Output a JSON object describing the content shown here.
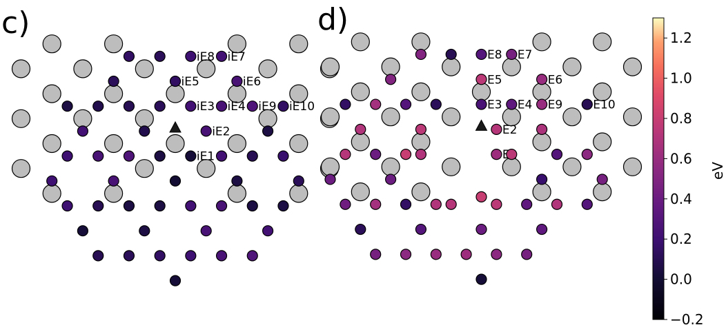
{
  "chart_data": [
    {
      "type": "scatter",
      "panel_label": "c)",
      "atoms": [
        [
          1,
          1
        ],
        [
          3,
          1
        ],
        [
          7,
          1
        ],
        [
          9,
          1
        ],
        [
          0,
          2
        ],
        [
          2,
          2
        ],
        [
          4,
          2
        ],
        [
          6,
          2
        ],
        [
          8,
          2
        ],
        [
          10,
          2
        ],
        [
          1,
          3
        ],
        [
          3,
          3
        ],
        [
          5,
          3
        ],
        [
          7,
          3
        ],
        [
          9,
          3
        ],
        [
          0,
          4
        ],
        [
          2,
          4
        ],
        [
          4,
          4
        ],
        [
          8,
          4
        ],
        [
          10,
          4
        ],
        [
          1,
          5
        ],
        [
          3,
          5
        ],
        [
          5,
          5
        ],
        [
          7,
          5
        ],
        [
          9,
          5
        ],
        [
          0,
          6
        ],
        [
          4,
          6
        ],
        [
          6,
          6
        ],
        [
          10,
          6
        ],
        [
          1,
          7
        ],
        [
          3,
          7
        ],
        [
          7,
          7
        ],
        [
          9,
          7
        ]
      ],
      "marker": [
        5,
        4.35
      ],
      "sites": [
        {
          "x": 3.5,
          "y": 1.5,
          "v": 0.15
        },
        {
          "x": 4.5,
          "y": 1.5,
          "v": 0.12
        },
        {
          "x": 5.5,
          "y": 1.5,
          "v": 0.2,
          "label": "iE8"
        },
        {
          "x": 6.5,
          "y": 1.5,
          "v": 0.22,
          "label": "iE7"
        },
        {
          "x": 3,
          "y": 2.5,
          "v": 0.12
        },
        {
          "x": 5,
          "y": 2.5,
          "v": 0.15,
          "label": "iE5"
        },
        {
          "x": 7,
          "y": 2.5,
          "v": 0.25,
          "label": "iE6"
        },
        {
          "x": 1.5,
          "y": 3.5,
          "v": 0.05
        },
        {
          "x": 2.5,
          "y": 3.5,
          "v": 0.08
        },
        {
          "x": 3.5,
          "y": 3.5,
          "v": 0.1
        },
        {
          "x": 4.5,
          "y": 3.5,
          "v": 0.12
        },
        {
          "x": 5.5,
          "y": 3.5,
          "v": 0.22,
          "label": "iE3"
        },
        {
          "x": 6.5,
          "y": 3.5,
          "v": 0.25,
          "label": "iE4"
        },
        {
          "x": 7.5,
          "y": 3.5,
          "v": 0.28,
          "label": "iE9"
        },
        {
          "x": 8.5,
          "y": 3.5,
          "v": 0.15,
          "label": "iE10"
        },
        {
          "x": 2,
          "y": 4.5,
          "v": 0.22
        },
        {
          "x": 4,
          "y": 4.5,
          "v": 0.08
        },
        {
          "x": 6,
          "y": 4.5,
          "v": 0.25,
          "label": "iE2"
        },
        {
          "x": 8,
          "y": 4.5,
          "v": 0.05
        },
        {
          "x": 1.5,
          "y": 5.5,
          "v": 0.2
        },
        {
          "x": 2.5,
          "y": 5.5,
          "v": 0.25
        },
        {
          "x": 3.5,
          "y": 5.5,
          "v": 0.28
        },
        {
          "x": 4.5,
          "y": 5.5,
          "v": 0.05
        },
        {
          "x": 5.5,
          "y": 5.5,
          "v": 0.02,
          "label": "iE1"
        },
        {
          "x": 6.5,
          "y": 5.5,
          "v": 0.22
        },
        {
          "x": 7.5,
          "y": 5.5,
          "v": 0.1
        },
        {
          "x": 8.5,
          "y": 5.5,
          "v": 0.18
        },
        {
          "x": 1,
          "y": 6.5,
          "v": 0.2
        },
        {
          "x": 3,
          "y": 6.5,
          "v": 0.25
        },
        {
          "x": 5,
          "y": 6.5,
          "v": 0.0
        },
        {
          "x": 7,
          "y": 6.5,
          "v": 0.05
        },
        {
          "x": 9,
          "y": 6.5,
          "v": 0.12
        },
        {
          "x": 1.5,
          "y": 7.5,
          "v": 0.2
        },
        {
          "x": 2.5,
          "y": 7.5,
          "v": 0.1
        },
        {
          "x": 3.5,
          "y": 7.5,
          "v": 0.05
        },
        {
          "x": 4.5,
          "y": 7.5,
          "v": 0.05
        },
        {
          "x": 5.5,
          "y": 7.5,
          "v": 0.22
        },
        {
          "x": 6.5,
          "y": 7.5,
          "v": 0.25
        },
        {
          "x": 7.5,
          "y": 7.5,
          "v": 0.05
        },
        {
          "x": 8.5,
          "y": 7.5,
          "v": 0.05
        },
        {
          "x": 2,
          "y": 8.5,
          "v": 0.02
        },
        {
          "x": 4,
          "y": 8.5,
          "v": 0.05
        },
        {
          "x": 6,
          "y": 8.5,
          "v": 0.25
        },
        {
          "x": 8,
          "y": 8.5,
          "v": 0.22
        },
        {
          "x": 2.5,
          "y": 9.5,
          "v": 0.1
        },
        {
          "x": 3.5,
          "y": 9.5,
          "v": 0.12
        },
        {
          "x": 4.5,
          "y": 9.5,
          "v": 0.15
        },
        {
          "x": 5.5,
          "y": 9.5,
          "v": 0.2
        },
        {
          "x": 6.5,
          "y": 9.5,
          "v": 0.25
        },
        {
          "x": 7.5,
          "y": 9.5,
          "v": 0.28
        },
        {
          "x": 5,
          "y": 10.5,
          "v": 0.02
        }
      ]
    },
    {
      "type": "scatter",
      "panel_label": "d)",
      "atoms": [
        [
          1,
          1
        ],
        [
          3,
          1
        ],
        [
          7,
          1
        ],
        [
          9,
          1
        ],
        [
          0,
          2
        ],
        [
          2,
          2
        ],
        [
          4,
          2
        ],
        [
          6,
          2
        ],
        [
          8,
          2
        ],
        [
          10,
          2
        ],
        [
          1,
          3
        ],
        [
          3,
          3
        ],
        [
          5,
          3
        ],
        [
          7,
          3
        ],
        [
          9,
          3
        ],
        [
          0,
          4
        ],
        [
          2,
          4
        ],
        [
          4,
          4
        ],
        [
          6,
          4
        ],
        [
          8,
          4
        ],
        [
          10,
          4
        ],
        [
          1,
          5
        ],
        [
          3,
          5
        ],
        [
          7,
          5
        ],
        [
          9,
          5
        ],
        [
          0,
          6
        ],
        [
          2,
          6
        ],
        [
          4,
          6
        ],
        [
          6,
          6
        ],
        [
          8,
          6
        ],
        [
          10,
          6
        ],
        [
          1,
          7
        ],
        [
          3,
          7
        ],
        [
          7,
          7
        ],
        [
          9,
          7
        ]
      ],
      "marker": [
        5,
        4.35
      ],
      "sites": [
        {
          "x": 3,
          "y": 1.5,
          "v": 0.5
        },
        {
          "x": 4,
          "y": 1.5,
          "v": 0.1
        },
        {
          "x": 5,
          "y": 1.5,
          "v": 0.3,
          "label": "E8"
        },
        {
          "x": 6,
          "y": 1.5,
          "v": 0.45,
          "label": "E7"
        },
        {
          "x": 2,
          "y": 2.5,
          "v": 0.5
        },
        {
          "x": 5,
          "y": 2.5,
          "v": 0.75,
          "label": "E5"
        },
        {
          "x": 7,
          "y": 2.5,
          "v": 0.6,
          "label": "E6"
        },
        {
          "x": 0.5,
          "y": 3.5,
          "v": 0.15
        },
        {
          "x": 1.5,
          "y": 3.5,
          "v": 0.65
        },
        {
          "x": 2.5,
          "y": 3.5,
          "v": 0.3
        },
        {
          "x": 3.5,
          "y": 3.5,
          "v": 0.12
        },
        {
          "x": 5,
          "y": 3.5,
          "v": 0.25,
          "label": "E3"
        },
        {
          "x": 6,
          "y": 3.5,
          "v": 0.35,
          "label": "E4"
        },
        {
          "x": 7,
          "y": 3.5,
          "v": 0.6,
          "label": "E9"
        },
        {
          "x": 8.5,
          "y": 3.5,
          "v": 0.1,
          "label": "E10"
        },
        {
          "x": 1,
          "y": 4.5,
          "v": 0.7
        },
        {
          "x": 3,
          "y": 4.5,
          "v": 0.75
        },
        {
          "x": 5.5,
          "y": 4.5,
          "v": 0.72,
          "label": "E2"
        },
        {
          "x": 7,
          "y": 4.5,
          "v": 0.68
        },
        {
          "x": 0.5,
          "y": 5.5,
          "v": 0.72
        },
        {
          "x": 1.5,
          "y": 5.5,
          "v": 0.4
        },
        {
          "x": 2.5,
          "y": 5.5,
          "v": 0.8
        },
        {
          "x": 3,
          "y": 5.5,
          "v": 0.7
        },
        {
          "x": 5.5,
          "y": 5.5,
          "v": 0.62,
          "label": "E1"
        },
        {
          "x": 6,
          "y": 5.5,
          "v": 0.75
        },
        {
          "x": 7.5,
          "y": 5.5,
          "v": 0.3
        },
        {
          "x": 8.5,
          "y": 5.5,
          "v": 0.55
        },
        {
          "x": 0,
          "y": 6.5,
          "v": 0.4
        },
        {
          "x": 2,
          "y": 6.5,
          "v": 0.4
        },
        {
          "x": 7,
          "y": 6.5,
          "v": 0.18
        },
        {
          "x": 9,
          "y": 6.5,
          "v": 0.45
        },
        {
          "x": 0.5,
          "y": 7.5,
          "v": 0.42
        },
        {
          "x": 1.5,
          "y": 7.5,
          "v": 0.65
        },
        {
          "x": 2.5,
          "y": 7.5,
          "v": 0.15
        },
        {
          "x": 3.5,
          "y": 7.5,
          "v": 0.7
        },
        {
          "x": 4,
          "y": 7.5,
          "v": 0.72
        },
        {
          "x": 5,
          "y": 7.2,
          "v": 0.8
        },
        {
          "x": 5.5,
          "y": 7.5,
          "v": 0.75
        },
        {
          "x": 6.5,
          "y": 7.5,
          "v": 0.35
        },
        {
          "x": 7.5,
          "y": 7.5,
          "v": 0.7
        },
        {
          "x": 8.5,
          "y": 7.5,
          "v": 0.3
        },
        {
          "x": 1,
          "y": 8.5,
          "v": 0.12
        },
        {
          "x": 3,
          "y": 8.5,
          "v": 0.3
        },
        {
          "x": 5,
          "y": 8.5,
          "v": 0.4
        },
        {
          "x": 7,
          "y": 8.5,
          "v": 0.35
        },
        {
          "x": 1.5,
          "y": 9.5,
          "v": 0.45
        },
        {
          "x": 2.5,
          "y": 9.5,
          "v": 0.55
        },
        {
          "x": 3.5,
          "y": 9.5,
          "v": 0.6
        },
        {
          "x": 4.5,
          "y": 9.5,
          "v": 0.62
        },
        {
          "x": 5.5,
          "y": 9.5,
          "v": 0.55
        },
        {
          "x": 6.5,
          "y": 9.5,
          "v": 0.45
        },
        {
          "x": 5,
          "y": 10.5,
          "v": 0.02
        }
      ]
    }
  ],
  "colorbar": {
    "label": "eV",
    "vmin": -0.2,
    "vmax": 1.3,
    "ticks": [
      "1.2",
      "1.0",
      "0.8",
      "0.6",
      "0.4",
      "0.2",
      "0.0",
      "−0.2"
    ],
    "tick_values": [
      1.2,
      1.0,
      0.8,
      0.6,
      0.4,
      0.2,
      0.0,
      -0.2
    ],
    "colormap": "magma"
  },
  "colors": {
    "atom_fill": "#bdbdbd",
    "edge": "#000000",
    "marker": "#1a1a1a"
  }
}
